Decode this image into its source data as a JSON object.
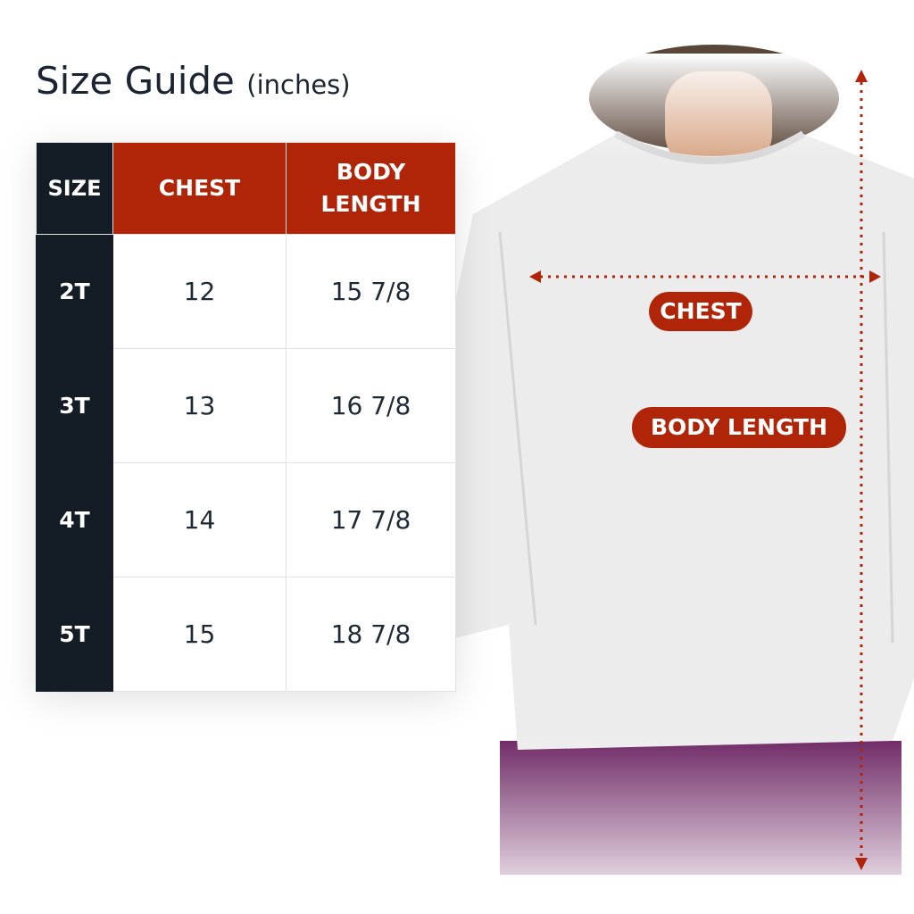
{
  "title": {
    "main": "Size Guide",
    "unit": "(inches)"
  },
  "table": {
    "headers": {
      "size": "SIZE",
      "chest": "CHEST",
      "body_line1": "BODY",
      "body_line2": "LENGTH"
    },
    "rows": [
      {
        "size": "2T",
        "chest": "12",
        "body_length": "15 7/8"
      },
      {
        "size": "3T",
        "chest": "13",
        "body_length": "16 7/8"
      },
      {
        "size": "4T",
        "chest": "14",
        "body_length": "17 7/8"
      },
      {
        "size": "5T",
        "chest": "15",
        "body_length": "18 7/8"
      }
    ]
  },
  "labels": {
    "chest": "CHEST",
    "body_length": "BODY LENGTH"
  },
  "colors": {
    "accent": "#b02508",
    "dark": "#141c25",
    "text": "#1b2433",
    "shirt": "#ececec",
    "pants": "#6a2160"
  }
}
